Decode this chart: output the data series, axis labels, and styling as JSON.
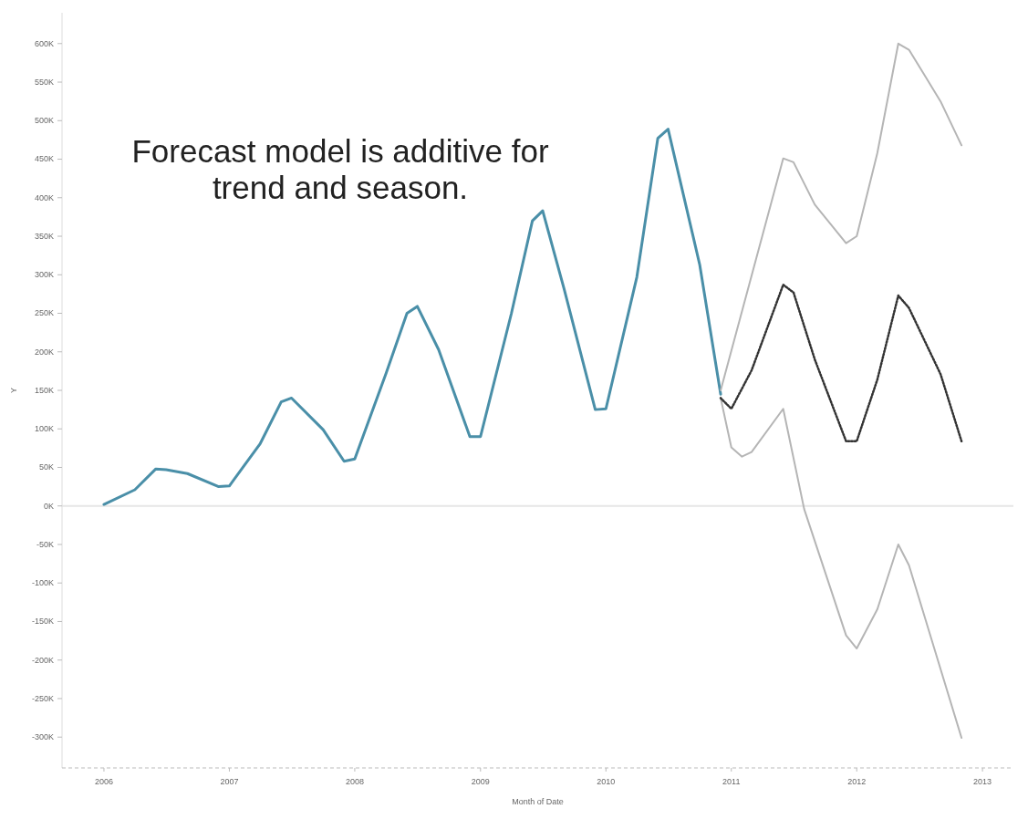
{
  "chart_data": {
    "type": "line",
    "xlabel": "Month of Date",
    "ylabel": "Y",
    "annotations": [
      "Forecast model is additive for\ntrend and season."
    ],
    "xlim": [
      "2005-09",
      "2013-04"
    ],
    "xticks": [
      "2006",
      "2007",
      "2008",
      "2009",
      "2010",
      "2011",
      "2012",
      "2013"
    ],
    "ylim": [
      -340000,
      640000
    ],
    "yticks": [
      {
        "value": -300000,
        "label": "-300K"
      },
      {
        "value": -250000,
        "label": "-250K"
      },
      {
        "value": -200000,
        "label": "-200K"
      },
      {
        "value": -150000,
        "label": "-150K"
      },
      {
        "value": -100000,
        "label": "-100K"
      },
      {
        "value": -50000,
        "label": "-50K"
      },
      {
        "value": 0,
        "label": "0K"
      },
      {
        "value": 50000,
        "label": "50K"
      },
      {
        "value": 100000,
        "label": "100K"
      },
      {
        "value": 150000,
        "label": "150K"
      },
      {
        "value": 200000,
        "label": "200K"
      },
      {
        "value": 250000,
        "label": "250K"
      },
      {
        "value": 300000,
        "label": "300K"
      },
      {
        "value": 350000,
        "label": "350K"
      },
      {
        "value": 400000,
        "label": "400K"
      },
      {
        "value": 450000,
        "label": "450K"
      },
      {
        "value": 500000,
        "label": "500K"
      },
      {
        "value": 550000,
        "label": "550K"
      },
      {
        "value": 600000,
        "label": "600K"
      }
    ],
    "grid": false,
    "marker": "none",
    "ref_lines": [
      {
        "axis": "y",
        "value": 0,
        "color": "#e6e6e6"
      }
    ],
    "series": [
      {
        "color": "#4a8fa8",
        "line_style": "solid",
        "x": [
          "2006-01",
          "2006-04",
          "2006-06",
          "2006-07",
          "2006-09",
          "2006-12",
          "2007-01",
          "2007-04",
          "2007-06",
          "2007-07",
          "2007-10",
          "2007-12",
          "2008-01",
          "2008-04",
          "2008-06",
          "2008-07",
          "2008-09",
          "2008-12",
          "2009-01",
          "2009-04",
          "2009-06",
          "2009-07",
          "2009-09",
          "2009-12",
          "2010-01",
          "2010-04",
          "2010-06",
          "2010-07",
          "2010-10",
          "2010-12"
        ],
        "values": [
          2000,
          21000,
          48000,
          47000,
          42000,
          25000,
          26000,
          81000,
          135000,
          140000,
          99000,
          58000,
          61000,
          172000,
          250000,
          259000,
          203000,
          90000,
          90000,
          250000,
          370000,
          383000,
          282000,
          125000,
          126000,
          297000,
          477000,
          489000,
          313000,
          145000
        ]
      },
      {
        "color": "#b5b5b5",
        "line_style": "solid",
        "x": [
          "2010-12",
          "2011-06",
          "2011-07",
          "2011-09",
          "2011-12",
          "2012-01",
          "2012-03",
          "2012-05",
          "2012-06",
          "2012-09",
          "2012-11"
        ],
        "values": [
          150000,
          451000,
          446000,
          391000,
          341000,
          350000,
          458000,
          600000,
          592000,
          525000,
          468000
        ]
      },
      {
        "color": "#b5b5b5",
        "line_style": "solid",
        "x": [
          "2010-12",
          "2011-01",
          "2011-02",
          "2011-03",
          "2011-06",
          "2011-08",
          "2011-12",
          "2012-01",
          "2012-03",
          "2012-05",
          "2012-06",
          "2012-11"
        ],
        "values": [
          140000,
          76000,
          64000,
          70000,
          126000,
          -4000,
          -168000,
          -185000,
          -134000,
          -50000,
          -77000,
          -301000
        ]
      },
      {
        "color": "#333333",
        "line_style": "dotted",
        "x": [
          "2010-12",
          "2011-01",
          "2011-03",
          "2011-06",
          "2011-07",
          "2011-09",
          "2011-12",
          "2012-01",
          "2012-03",
          "2012-05",
          "2012-06",
          "2012-09",
          "2012-11"
        ],
        "values": [
          140000,
          126000,
          176000,
          287000,
          277000,
          190000,
          84000,
          84000,
          164000,
          273000,
          257000,
          171000,
          84000
        ]
      }
    ]
  }
}
